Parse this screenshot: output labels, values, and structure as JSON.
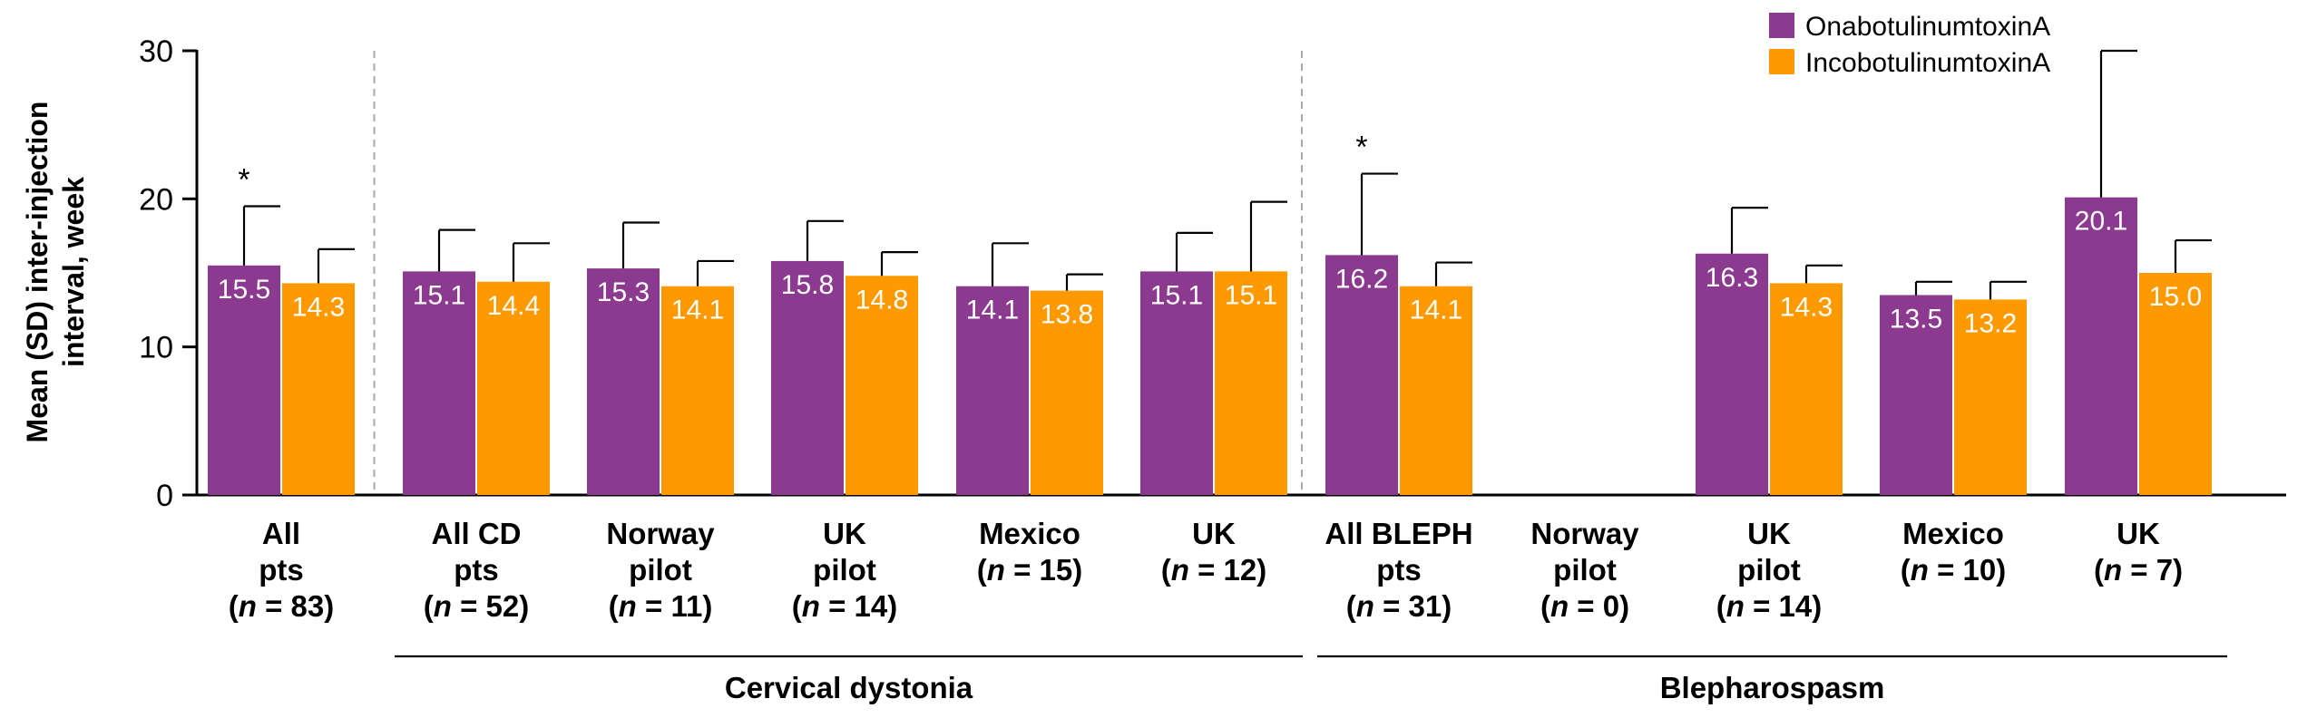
{
  "chart_data": {
    "type": "bar",
    "ylabel": "Mean (SD) inter-injection interval, week",
    "ylim": [
      0,
      30
    ],
    "yticks": [
      0,
      10,
      20,
      30
    ],
    "legend_position": "top-right",
    "series": [
      {
        "name": "OnabotulinumtoxinA",
        "color": "#8B3A8F",
        "values": [
          15.5,
          15.1,
          15.3,
          15.8,
          14.1,
          15.1,
          16.2,
          null,
          16.3,
          13.5,
          20.1
        ],
        "sd": [
          4.0,
          2.8,
          3.1,
          2.7,
          2.9,
          2.6,
          5.5,
          null,
          3.1,
          0.9,
          9.9
        ],
        "labels": [
          "15.5",
          "15.1",
          "15.3",
          "15.8",
          "14.1",
          "15.1",
          "16.2",
          "",
          "16.3",
          "13.5",
          "20.1"
        ]
      },
      {
        "name": "IncobotulinumtoxinA",
        "color": "#FF9900",
        "values": [
          14.3,
          14.4,
          14.1,
          14.8,
          13.8,
          15.1,
          14.1,
          null,
          14.3,
          13.2,
          15.0
        ],
        "sd": [
          2.3,
          2.6,
          1.7,
          1.6,
          1.1,
          4.7,
          1.6,
          null,
          1.2,
          1.2,
          2.2
        ],
        "labels": [
          "14.3",
          "14.4",
          "14.1",
          "14.8",
          "13.8",
          "15.1",
          "14.1",
          "",
          "14.3",
          "13.2",
          "15.0"
        ]
      }
    ],
    "categories": [
      {
        "lines": [
          "All",
          "pts",
          "(n = 83)"
        ]
      },
      {
        "lines": [
          "All CD",
          "pts",
          "(n = 52)"
        ]
      },
      {
        "lines": [
          "Norway",
          "pilot",
          "(n = 11)"
        ]
      },
      {
        "lines": [
          "UK",
          "pilot",
          "(n = 14)"
        ]
      },
      {
        "lines": [
          "Mexico",
          "(n = 15)"
        ]
      },
      {
        "lines": [
          "UK",
          "(n = 12)"
        ]
      },
      {
        "lines": [
          "All BLEPH",
          "pts",
          "(n = 31)"
        ]
      },
      {
        "lines": [
          "Norway",
          "pilot",
          "(n = 0)"
        ]
      },
      {
        "lines": [
          "UK",
          "pilot",
          "(n = 14)"
        ]
      },
      {
        "lines": [
          "Mexico",
          "(n = 10)"
        ]
      },
      {
        "lines": [
          "UK",
          "(n = 7)"
        ]
      }
    ],
    "significance": [
      {
        "category_index": 0,
        "label": "*"
      },
      {
        "category_index": 6,
        "label": "*"
      }
    ],
    "groups": [
      {
        "label": "Cervical dystonia",
        "from": 1,
        "to": 5
      },
      {
        "label": "Blepharospasm",
        "from": 6,
        "to": 10
      }
    ],
    "separators_after": [
      0,
      5
    ]
  }
}
